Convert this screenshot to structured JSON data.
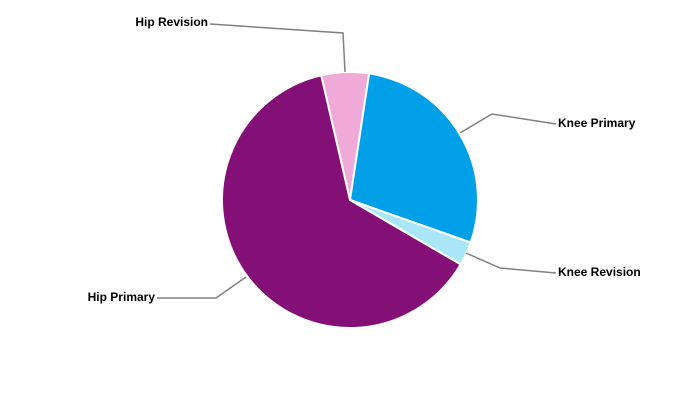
{
  "chart_data": {
    "type": "pie",
    "categories": [
      "Hip Revision",
      "Knee Primary",
      "Knee Revision",
      "Hip Primary"
    ],
    "values": [
      6,
      28,
      3,
      63
    ],
    "colors": [
      "#f0aad8",
      "#00a0e9",
      "#a9e7f8",
      "#841077"
    ]
  }
}
